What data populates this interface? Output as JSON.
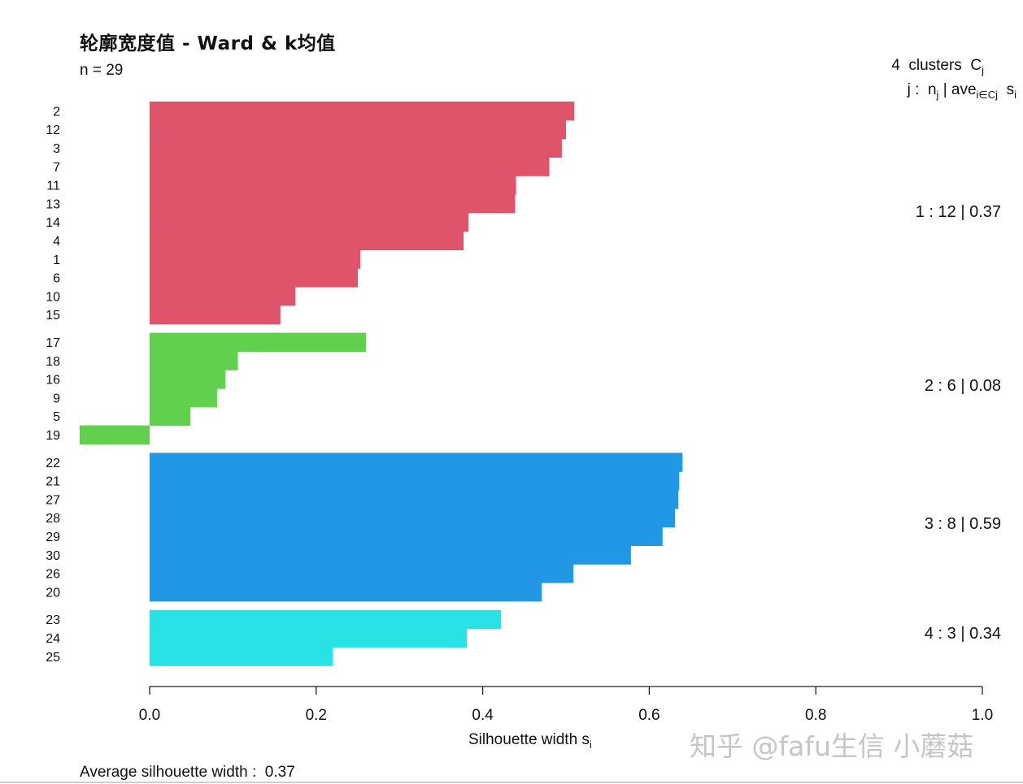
{
  "title": "轮廓宽度值 - Ward & k均值",
  "subtitle": "n = 29",
  "header": {
    "clusters_count": "4",
    "clusters_text": "clusters",
    "clusters_symbol": "C",
    "clusters_sub": "j",
    "line2_prefix": "j :",
    "line2_n": "n",
    "line2_n_sub": "j",
    "line2_sep": "|",
    "line2_ave": "ave",
    "line2_ave_sub": "i∈Cj",
    "line2_s": "s",
    "line2_s_sub": "i"
  },
  "x_axis": {
    "label_main": "Silhouette width s",
    "label_sub": "i",
    "ticks": [
      "0.0",
      "0.2",
      "0.4",
      "0.6",
      "0.8",
      "1.0"
    ]
  },
  "footer": {
    "avg_text": "Average silhouette width :",
    "avg_value": "0.37"
  },
  "watermark": "知乎 @fafu生信 小蘑菇",
  "chart_data": {
    "type": "bar",
    "orientation": "horizontal",
    "xlim": [
      -0.17,
      1.0
    ],
    "clusters": [
      {
        "label": "1 :  12  |  0.37",
        "color": "#DF536B",
        "items": [
          {
            "id": "2",
            "value": 0.51
          },
          {
            "id": "12",
            "value": 0.5
          },
          {
            "id": "3",
            "value": 0.495
          },
          {
            "id": "7",
            "value": 0.48
          },
          {
            "id": "11",
            "value": 0.44
          },
          {
            "id": "13",
            "value": 0.439
          },
          {
            "id": "14",
            "value": 0.383
          },
          {
            "id": "4",
            "value": 0.377
          },
          {
            "id": "1",
            "value": 0.253
          },
          {
            "id": "6",
            "value": 0.25
          },
          {
            "id": "10",
            "value": 0.175
          },
          {
            "id": "15",
            "value": 0.157
          }
        ]
      },
      {
        "label": "2 :  6  |  0.08",
        "color": "#61D04F",
        "items": [
          {
            "id": "17",
            "value": 0.26
          },
          {
            "id": "18",
            "value": 0.106
          },
          {
            "id": "16",
            "value": 0.091
          },
          {
            "id": "9",
            "value": 0.081
          },
          {
            "id": "5",
            "value": 0.049
          },
          {
            "id": "19",
            "value": -0.084
          }
        ]
      },
      {
        "label": "3 :  8  |  0.59",
        "color": "#2297E6",
        "items": [
          {
            "id": "22",
            "value": 0.64
          },
          {
            "id": "21",
            "value": 0.636
          },
          {
            "id": "27",
            "value": 0.635
          },
          {
            "id": "28",
            "value": 0.631
          },
          {
            "id": "29",
            "value": 0.616
          },
          {
            "id": "30",
            "value": 0.578
          },
          {
            "id": "26",
            "value": 0.509
          },
          {
            "id": "20",
            "value": 0.471
          }
        ]
      },
      {
        "label": "4 :  3  |  0.34",
        "color": "#28E2E5",
        "items": [
          {
            "id": "23",
            "value": 0.422
          },
          {
            "id": "24",
            "value": 0.381
          },
          {
            "id": "25",
            "value": 0.22
          }
        ]
      }
    ]
  }
}
